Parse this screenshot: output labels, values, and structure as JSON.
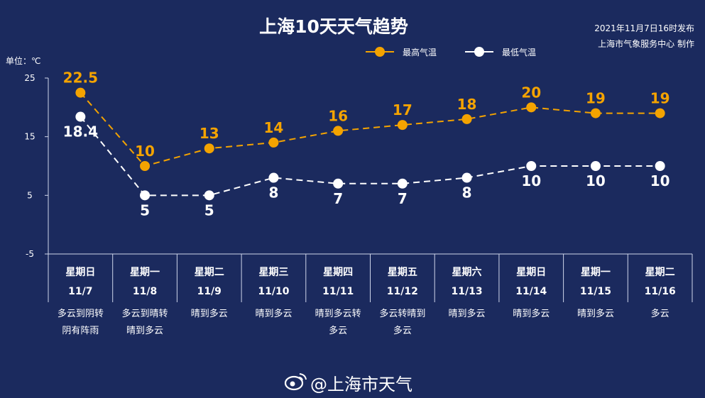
{
  "chart_data": {
    "type": "line",
    "title": "上海10天天气趋势",
    "publish_line1": "2021年11月7日16时发布",
    "publish_line2": "上海市气象服务中心 制作",
    "unit_label": "单位：℃",
    "ylim": [
      -5,
      25
    ],
    "yticks": [
      "25",
      "15",
      "5",
      "-5"
    ],
    "ytick_values": [
      25,
      15,
      5,
      -5
    ],
    "grid": false,
    "legend_position": "top-right",
    "categories": [
      "星期日",
      "星期一",
      "星期二",
      "星期三",
      "星期四",
      "星期五",
      "星期六",
      "星期日",
      "星期一",
      "星期二"
    ],
    "dates": [
      "11/7",
      "11/8",
      "11/9",
      "11/10",
      "11/11",
      "11/12",
      "11/13",
      "11/14",
      "11/15",
      "11/16"
    ],
    "weather": [
      [
        "多云到阴转",
        "阴有阵雨"
      ],
      [
        "多云到晴转",
        "晴到多云"
      ],
      [
        "晴到多云"
      ],
      [
        "晴到多云"
      ],
      [
        "晴到多云转",
        "多云"
      ],
      [
        "多云转晴到",
        "多云"
      ],
      [
        "晴到多云"
      ],
      [
        "晴到多云"
      ],
      [
        "晴到多云"
      ],
      [
        "多云"
      ]
    ],
    "series": [
      {
        "name": "最高气温",
        "color": "#f4a300",
        "values": [
          22.5,
          10,
          13,
          14,
          16,
          17,
          18,
          20,
          19,
          19
        ],
        "labels": [
          "22.5",
          "10",
          "13",
          "14",
          "16",
          "17",
          "18",
          "20",
          "19",
          "19"
        ]
      },
      {
        "name": "最低气温",
        "color": "#ffffff",
        "values": [
          18.4,
          5,
          5,
          8,
          7,
          7,
          8,
          10,
          10,
          10
        ],
        "labels": [
          "18.4",
          "5",
          "5",
          "8",
          "7",
          "7",
          "8",
          "10",
          "10",
          "10"
        ]
      }
    ]
  },
  "watermark": "@上海市天气",
  "watermark_icon": "weibo-icon"
}
